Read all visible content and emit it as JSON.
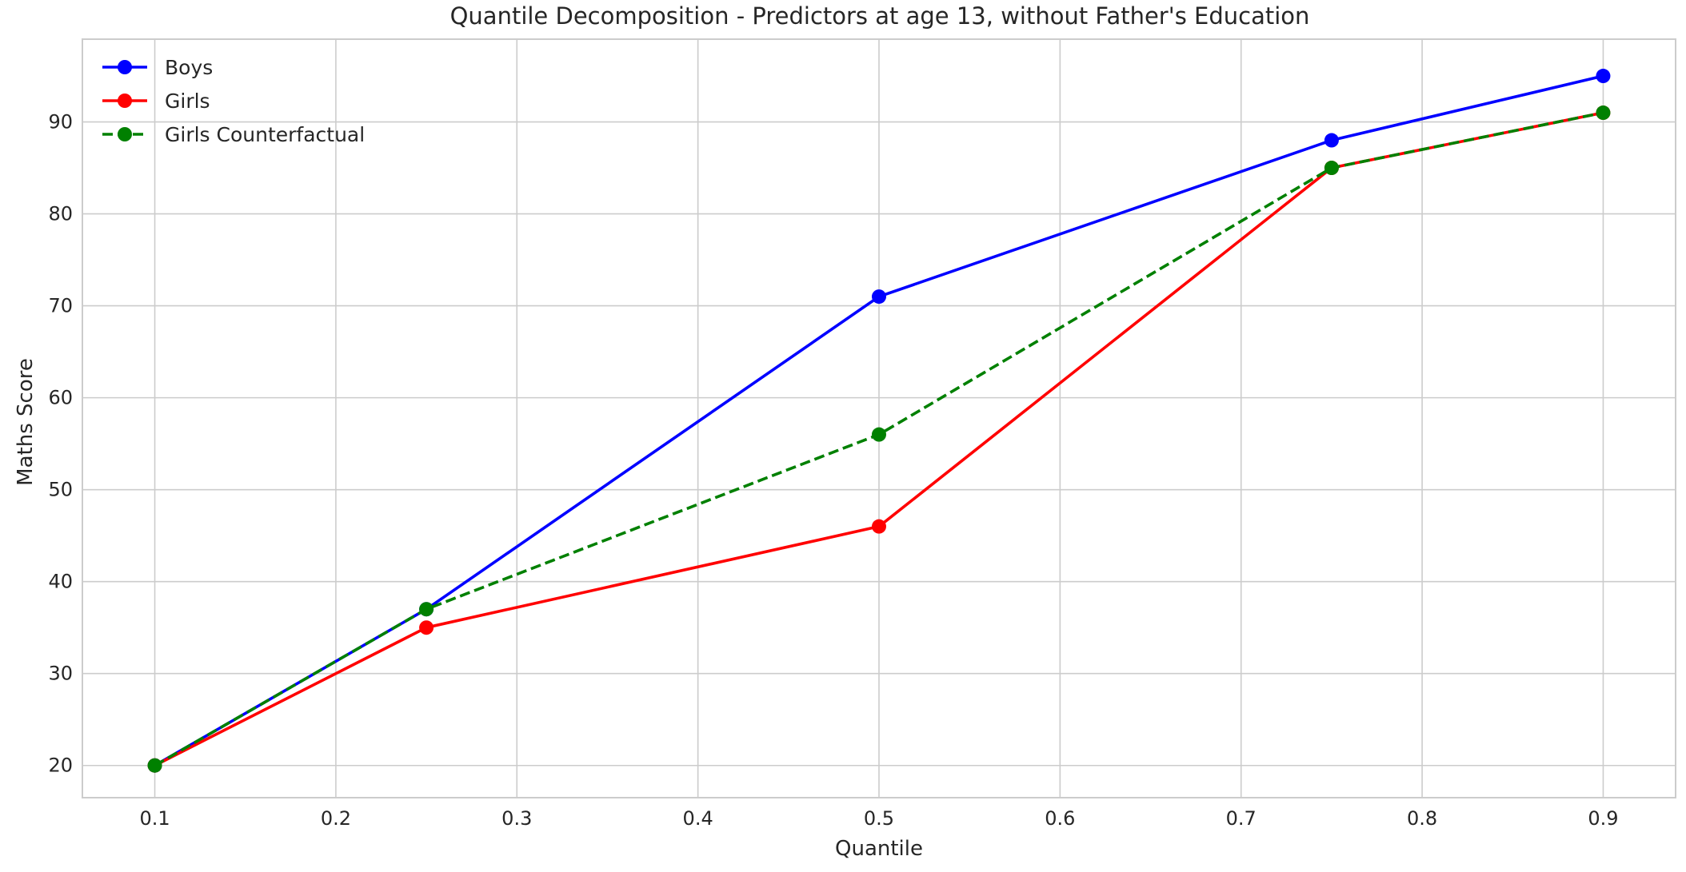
{
  "chart_data": {
    "type": "line",
    "title": "Quantile Decomposition - Predictors at age 13, without Father's Education",
    "xlabel": "Quantile",
    "ylabel": "Maths Score",
    "x": [
      0.1,
      0.25,
      0.5,
      0.75,
      0.9
    ],
    "xlim": [
      0.06,
      0.94
    ],
    "ylim": [
      16.5,
      99
    ],
    "xticks": [
      0.1,
      0.2,
      0.3,
      0.4,
      0.5,
      0.6,
      0.7,
      0.8,
      0.9
    ],
    "xtick_labels": [
      "0.1",
      "0.2",
      "0.3",
      "0.4",
      "0.5",
      "0.6",
      "0.7",
      "0.8",
      "0.9"
    ],
    "yticks": [
      20,
      30,
      40,
      50,
      60,
      70,
      80,
      90
    ],
    "ytick_labels": [
      "20",
      "30",
      "40",
      "50",
      "60",
      "70",
      "80",
      "90"
    ],
    "grid": true,
    "legend_position": "top-left",
    "series": [
      {
        "name": "Boys",
        "values": [
          20,
          37,
          71,
          88,
          95
        ],
        "color": "#0000ff",
        "dashed": false
      },
      {
        "name": "Girls",
        "values": [
          20,
          35,
          46,
          85,
          91
        ],
        "color": "#ff0000",
        "dashed": false
      },
      {
        "name": "Girls Counterfactual",
        "values": [
          20,
          37,
          56,
          85,
          91
        ],
        "color": "#008000",
        "dashed": true
      }
    ]
  }
}
